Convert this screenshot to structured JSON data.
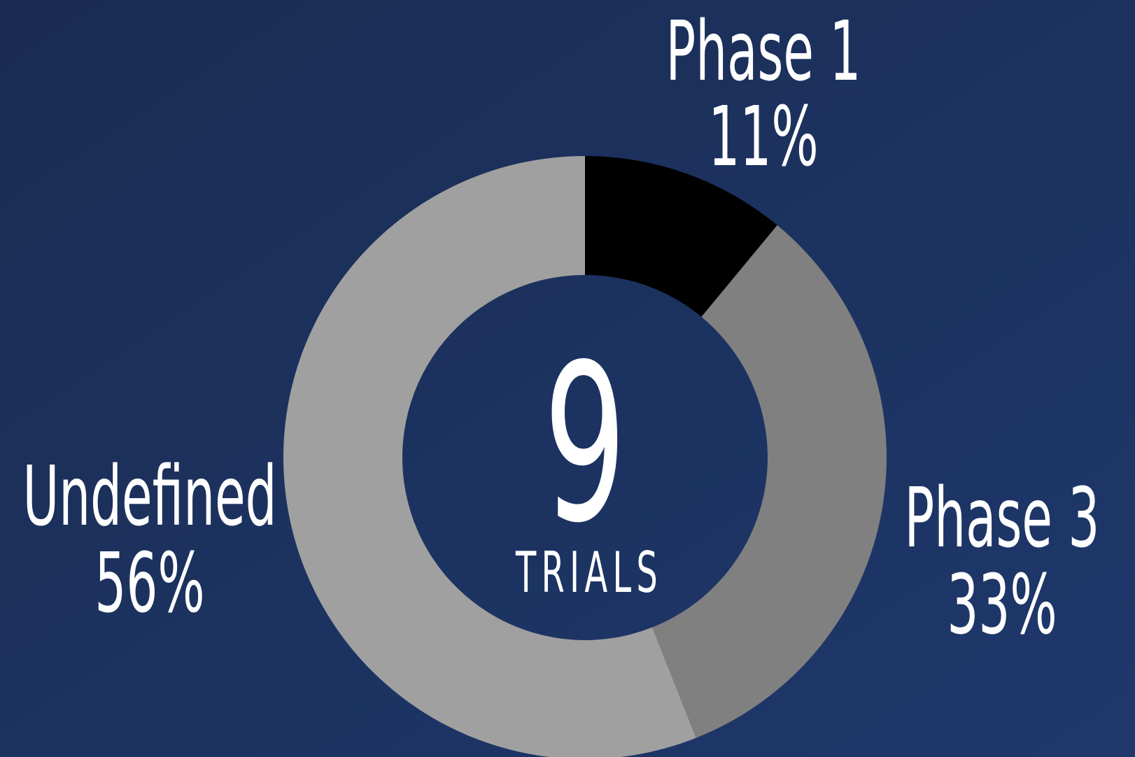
{
  "chart_data": {
    "type": "donut",
    "categories": [
      "Phase 1",
      "Phase 3",
      "Undefined"
    ],
    "values": [
      11,
      33,
      56
    ],
    "value_labels": [
      "11%",
      "33%",
      "56%"
    ],
    "colors": [
      "#000000",
      "#808080",
      "#a0a0a0"
    ],
    "center_value": 9,
    "center_label": "TRIALS"
  }
}
